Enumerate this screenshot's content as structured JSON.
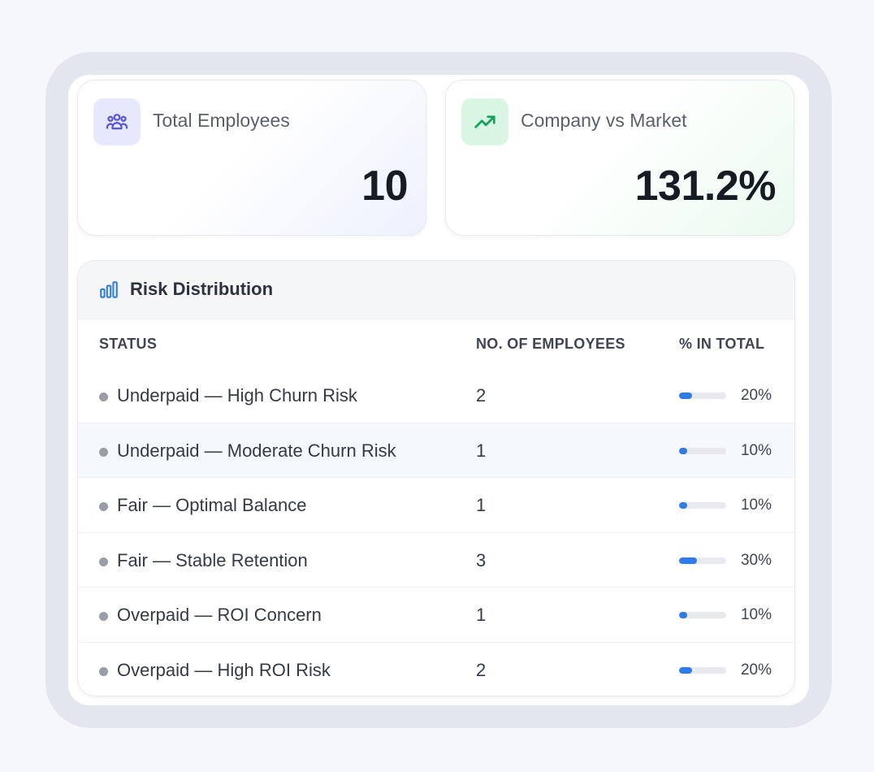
{
  "cards": {
    "total_employees": {
      "label": "Total Employees",
      "value": "10",
      "icon": "users-icon",
      "accent": "#5a55d6"
    },
    "company_vs_market": {
      "label": "Company vs Market",
      "value": "131.2%",
      "icon": "trending-up-icon",
      "accent": "#16a05a"
    }
  },
  "risk_distribution": {
    "title": "Risk Distribution",
    "icon": "bar-chart-icon",
    "columns": {
      "status": "STATUS",
      "count": "NO. OF EMPLOYEES",
      "percent": "% IN TOTAL"
    },
    "rows": [
      {
        "status": "Underpaid — High Churn Risk",
        "count": "2",
        "percent": "20%",
        "fraction": 0.2
      },
      {
        "status": "Underpaid — Moderate Churn Risk",
        "count": "1",
        "percent": "10%",
        "fraction": 0.1
      },
      {
        "status": "Fair — Optimal Balance",
        "count": "1",
        "percent": "10%",
        "fraction": 0.1
      },
      {
        "status": "Fair — Stable Retention",
        "count": "3",
        "percent": "30%",
        "fraction": 0.3
      },
      {
        "status": "Overpaid — ROI Concern",
        "count": "1",
        "percent": "10%",
        "fraction": 0.1
      },
      {
        "status": "Overpaid — High ROI Risk",
        "count": "2",
        "percent": "20%",
        "fraction": 0.2
      }
    ],
    "bar_color": "#2f7be8",
    "dot_color": "#999da5"
  }
}
